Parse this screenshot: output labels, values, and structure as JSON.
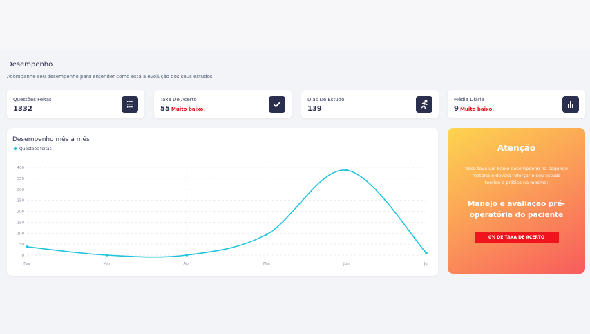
{
  "header": {
    "title": "Desempenho",
    "subtitle": "Acompanhe seu desempenho para entender como está a evolução dos seus estudos."
  },
  "stats": [
    {
      "label": "Questões Feitas",
      "value": 1332
    },
    {
      "label": "Taxa De Acerto",
      "value": 55,
      "note": "Muito baixo."
    },
    {
      "label": "Dias De Estudo",
      "value": 139
    },
    {
      "label": "Média Diária",
      "value": 9,
      "note": "Muito baixo."
    }
  ],
  "chart_data": {
    "type": "line",
    "title": "Desempenho mês a mês",
    "categories": [
      "Fev",
      "Mar",
      "Abr",
      "Mai",
      "Jun",
      "Jul"
    ],
    "series": [
      {
        "name": "Questões feitas",
        "color": "#1ec4dc",
        "values": [
          38,
          0,
          0,
          94,
          387,
          10
        ]
      }
    ],
    "ylim": [
      0,
      400
    ],
    "yticks": [
      0,
      50,
      100,
      150,
      200,
      250,
      300,
      350,
      400
    ],
    "grid": true
  },
  "alert": {
    "title": "Atenção",
    "text": "Você teve um baixo desempenho na seguinte matéria e deverá reforçar o seu estudo teórico e prático na mesma:",
    "subject": "Manejo e avaliação pré-operatória do paciente",
    "button": "0% DE TAXA DE ACERTO"
  }
}
